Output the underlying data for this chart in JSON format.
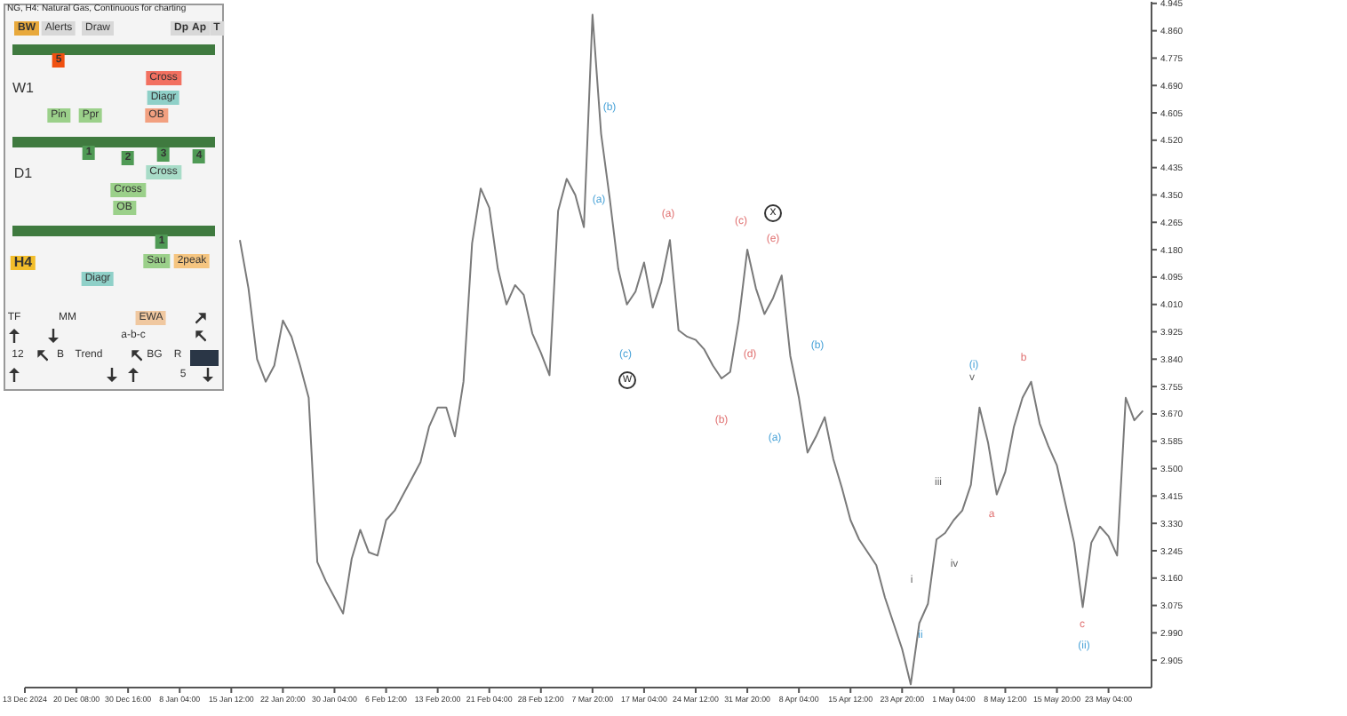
{
  "chart_data": {
    "type": "line",
    "title": "NG, H4: Natural Gas, Continuous for charting",
    "categories": [
      "13 Dec 2024",
      null,
      null,
      null,
      null,
      null,
      "20 Dec 08:00",
      null,
      null,
      null,
      null,
      null,
      "30 Dec 16:00",
      null,
      null,
      null,
      null,
      null,
      "8 Jan 04:00",
      null,
      null,
      null,
      null,
      null,
      "15 Jan 12:00",
      null,
      null,
      null,
      null,
      null,
      "22 Jan 20:00",
      null,
      null,
      null,
      null,
      null,
      "30 Jan 04:00",
      null,
      null,
      null,
      null,
      null,
      "6 Feb 12:00",
      null,
      null,
      null,
      null,
      null,
      "13 Feb 20:00",
      null,
      null,
      null,
      null,
      null,
      "21 Feb 04:00",
      null,
      null,
      null,
      null,
      null,
      "28 Feb 12:00",
      null,
      null,
      null,
      null,
      null,
      "7 Mar 20:00",
      null,
      null,
      null,
      null,
      null,
      "17 Mar 04:00",
      null,
      null,
      null,
      null,
      null,
      "24 Mar 12:00",
      null,
      null,
      null,
      null,
      null,
      "31 Mar 20:00",
      null,
      null,
      null,
      null,
      null,
      "8 Apr 04:00",
      null,
      null,
      null,
      null,
      null,
      "15 Apr 12:00",
      null,
      null,
      null,
      null,
      null,
      "23 Apr 20:00",
      null,
      null,
      null,
      null,
      null,
      "1 May 04:00",
      null,
      null,
      null,
      null,
      null,
      "8 May 12:00",
      null,
      null,
      null,
      null,
      null,
      "15 May 20:00",
      null,
      null,
      null,
      null,
      null,
      "23 May 04:00",
      null,
      null,
      null,
      null
    ],
    "series": [
      {
        "color": "#7a7a7a",
        "values": [
          null,
          null,
          null,
          null,
          null,
          null,
          null,
          null,
          null,
          null,
          null,
          null,
          null,
          null,
          null,
          null,
          null,
          null,
          null,
          null,
          null,
          null,
          null,
          null,
          null,
          4.21,
          4.06,
          3.84,
          3.77,
          3.82,
          3.96,
          3.91,
          3.82,
          3.72,
          3.21,
          3.15,
          3.1,
          3.05,
          3.22,
          3.31,
          3.24,
          3.23,
          3.34,
          3.37,
          3.42,
          3.47,
          3.52,
          3.63,
          3.69,
          3.69,
          3.6,
          3.77,
          4.2,
          4.37,
          4.31,
          4.12,
          4.01,
          4.07,
          4.04,
          3.92,
          3.86,
          3.79,
          4.3,
          4.4,
          4.35,
          4.25,
          4.91,
          4.54,
          4.34,
          4.12,
          4.01,
          4.05,
          4.14,
          4.0,
          4.08,
          4.21,
          3.93,
          3.91,
          3.9,
          3.87,
          3.82,
          3.78,
          3.8,
          3.96,
          4.18,
          4.06,
          3.98,
          4.03,
          4.1,
          3.85,
          3.72,
          3.55,
          3.6,
          3.66,
          3.53,
          3.44,
          3.34,
          3.28,
          3.24,
          3.2,
          3.1,
          3.02,
          2.94,
          2.83,
          3.02,
          3.08,
          3.28,
          3.3,
          3.34,
          3.37,
          3.45,
          3.69,
          3.58,
          3.42,
          3.49,
          3.63,
          3.72,
          3.77,
          3.64,
          3.57,
          3.51,
          3.39,
          3.27,
          3.07,
          3.27,
          3.32,
          3.29,
          3.23,
          3.72,
          3.65,
          3.68
        ]
      }
    ],
    "ylim": [
      2.82,
      4.95
    ],
    "yticks": [
      4.945,
      {
        "value": 4.86,
        "label": "4.860"
      },
      4.775,
      {
        "value": 4.69,
        "label": "4.690"
      },
      4.605,
      {
        "value": 4.52,
        "label": "4.520"
      },
      4.435,
      {
        "value": 4.35,
        "label": "4.350"
      },
      4.265,
      {
        "value": 4.18,
        "label": "4.180"
      },
      4.095,
      {
        "value": 4.01,
        "label": "4.010"
      },
      3.925,
      {
        "value": 3.84,
        "label": "3.840"
      },
      3.755,
      {
        "value": 3.67,
        "label": "3.670"
      },
      3.585,
      {
        "value": 3.5,
        "label": "3.500"
      },
      3.415,
      {
        "value": 3.33,
        "label": "3.330"
      },
      3.245,
      {
        "value": 3.16,
        "label": "3.160"
      },
      3.075,
      {
        "value": 2.99,
        "label": "2.990"
      },
      2.905
    ],
    "marker": "none",
    "annotations": [
      "(b)",
      "(a)",
      "(c)",
      "w",
      "(a)",
      "(c)",
      "x",
      "(e)",
      "(d)",
      "(b)",
      "(b)",
      "(a)",
      "i",
      "ii",
      "iii",
      "iv",
      "v",
      "(i)",
      "a",
      "b",
      "c",
      "(ii)",
      "BW",
      "12",
      "Alerts",
      "Draw",
      "Dp",
      "Ap",
      "T",
      "W1",
      "5",
      "Cross",
      "Diagr",
      "Pin",
      "Ppr",
      "OB",
      "D1",
      "1",
      "2",
      "3",
      "4",
      "Cross",
      "Cross",
      "OB",
      "H4",
      "1",
      "Sau",
      "2peak",
      "Diagr",
      "TF",
      "MM",
      "EWA",
      "a-b-c",
      "B",
      "Trend",
      "BG",
      "R",
      "5"
    ]
  }
}
